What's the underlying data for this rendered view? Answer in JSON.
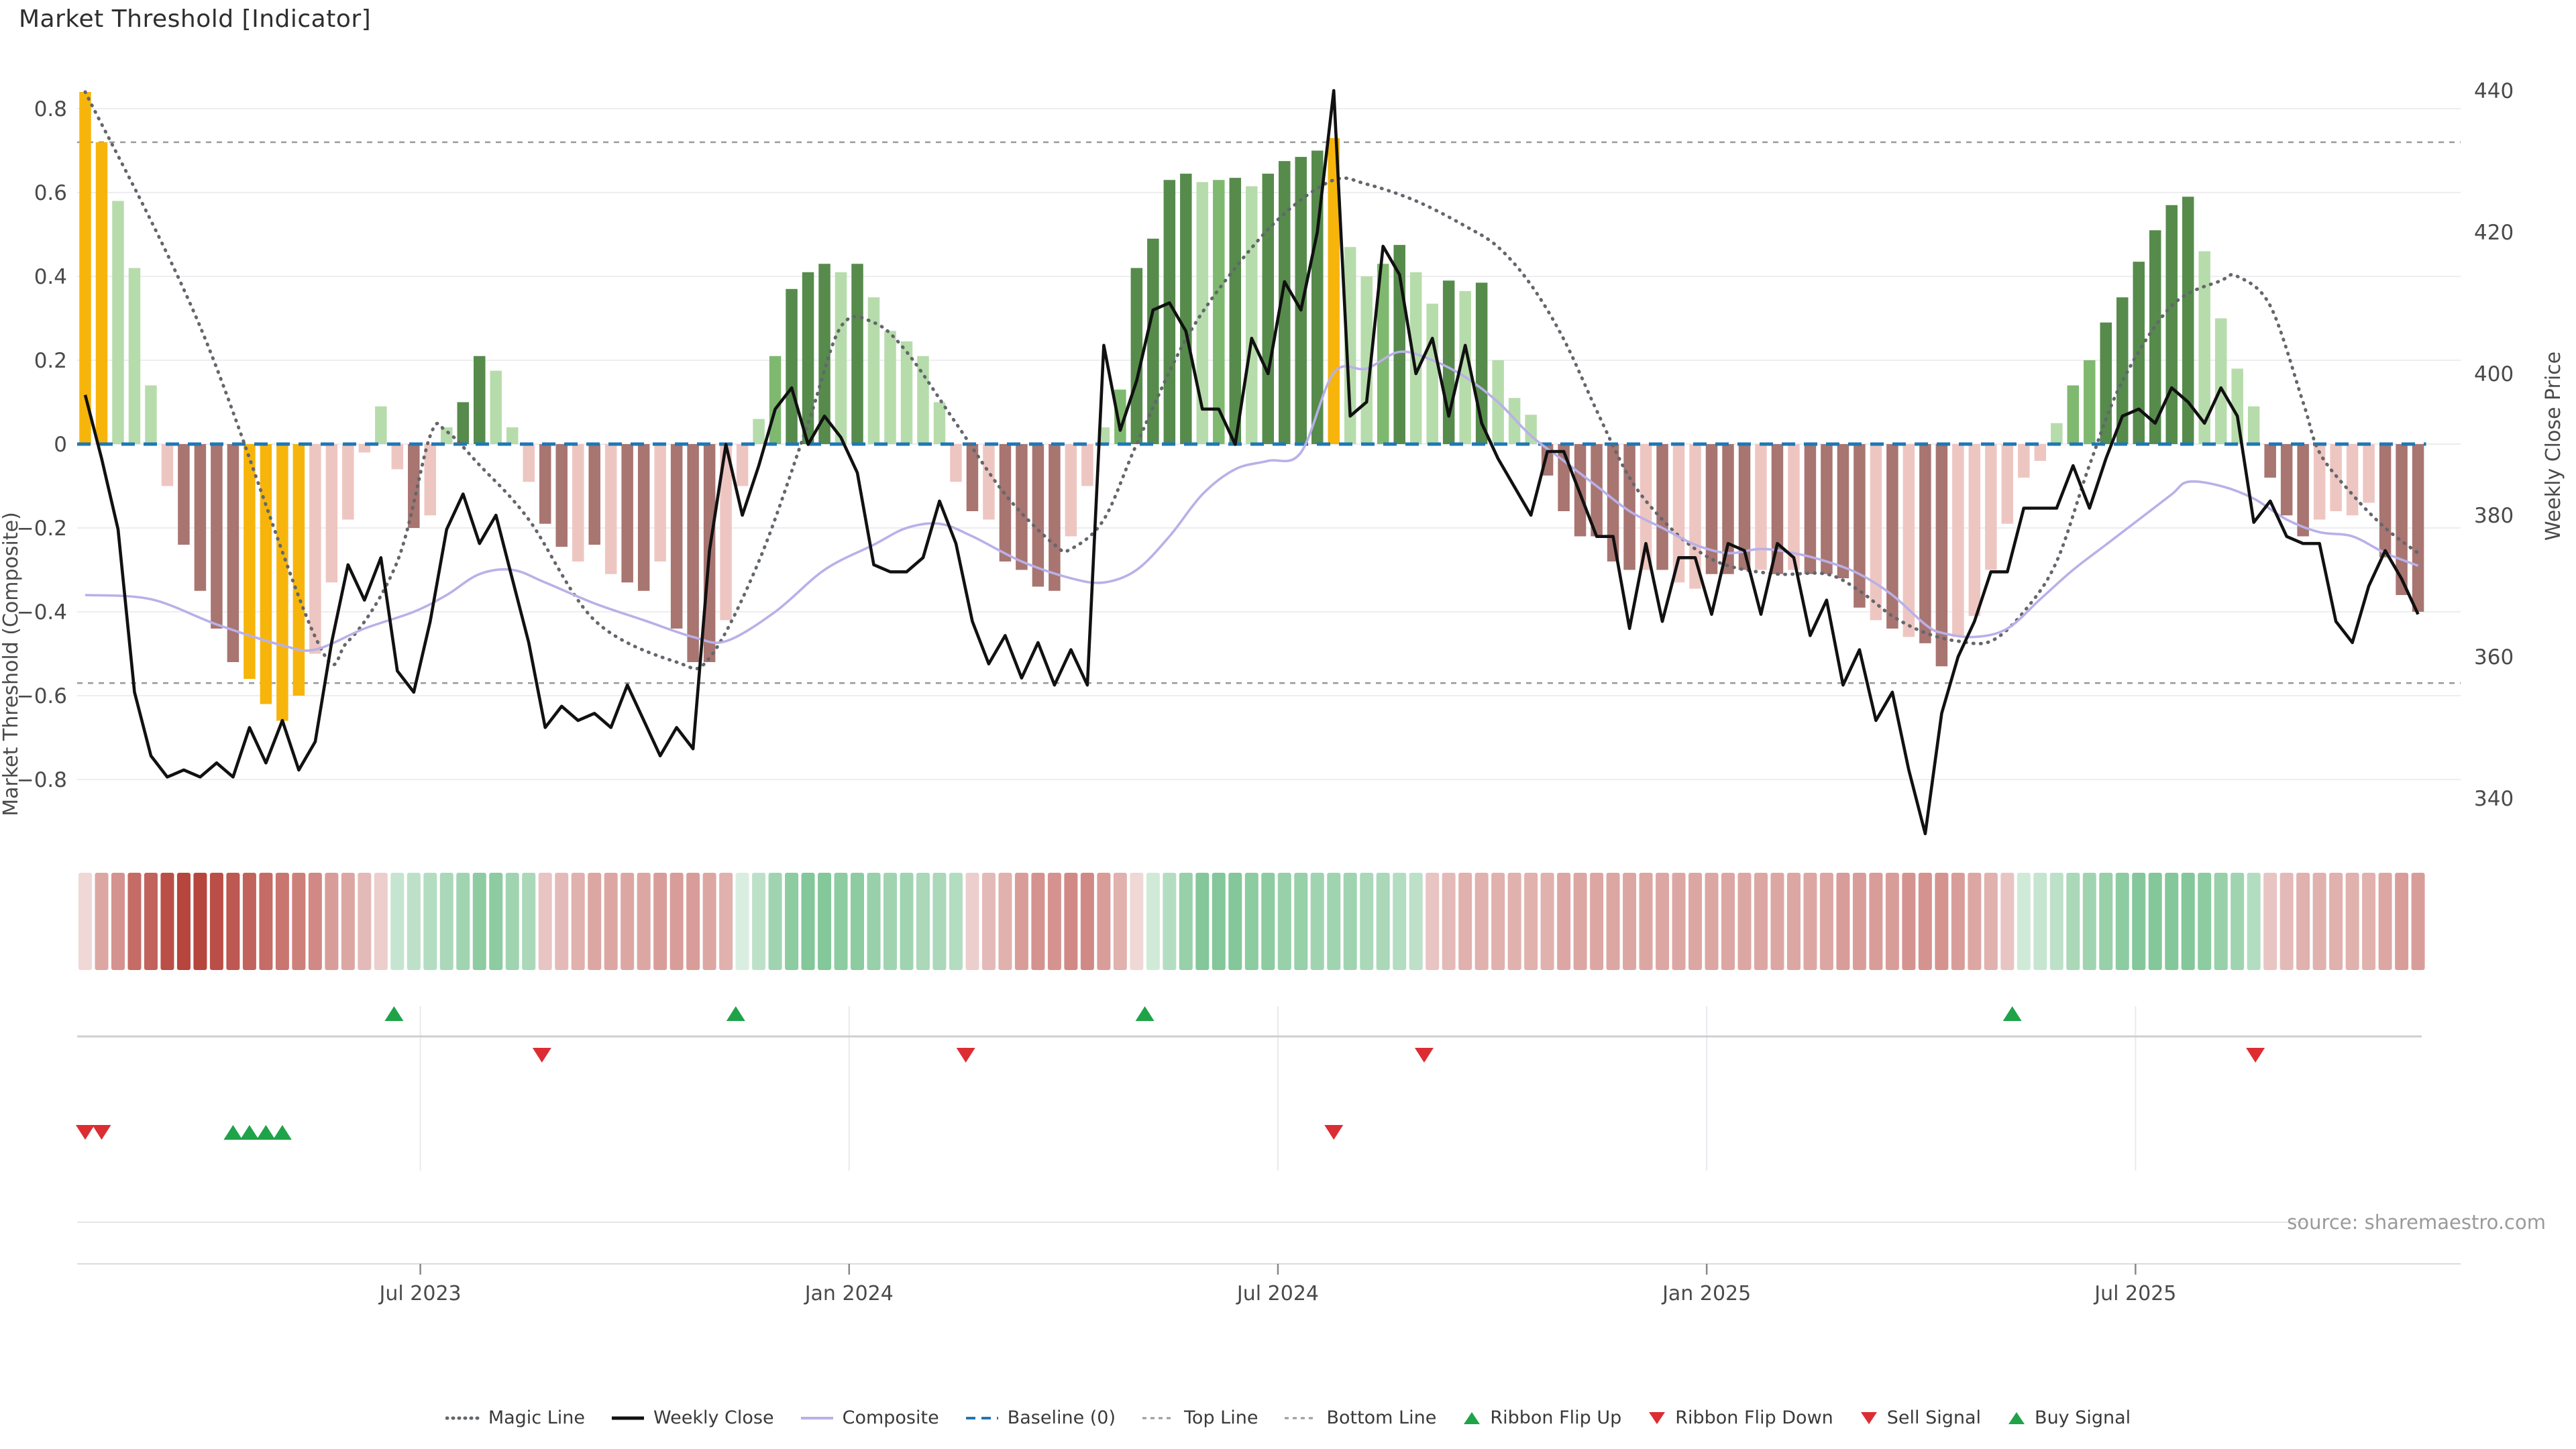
{
  "title": "Market Threshold [Indicator]",
  "source": "source: sharemaestro.com",
  "axes": {
    "left_label": "Market Threshold (Composite)",
    "right_label": "Weekly Close Price",
    "left_ticks": [
      0.8,
      0.6,
      0.4,
      0.2,
      0.0,
      -0.2,
      -0.4,
      -0.6,
      -0.8
    ],
    "right_ticks": [
      440,
      420,
      400,
      380,
      360,
      340
    ],
    "x_ticks": [
      {
        "label": "Jul 2023",
        "i": 20.4
      },
      {
        "label": "Jan 2024",
        "i": 46.5
      },
      {
        "label": "Jul 2024",
        "i": 72.6
      },
      {
        "label": "Jan 2025",
        "i": 98.7
      },
      {
        "label": "Jul 2025",
        "i": 124.8
      }
    ]
  },
  "style": {
    "bar_colors": {
      "Y": "#f7b50c",
      "d": "#568b4c",
      "m": "#7fb96f",
      "l": "#b7dcab",
      "P": "#eec6c1",
      "M": "#a87571"
    },
    "weekly_close": "#111111",
    "composite": "#b9b0e8",
    "magic": "#63676c",
    "baseline": "#1f77b4",
    "bound_lines": "#999999",
    "grid": "#ededf2",
    "ribbon_red": "#b23b33",
    "ribbon_green": "#41a963",
    "signal_green": "#1fa348",
    "signal_red": "#dc2d33",
    "tick_text": "#4a4a4a",
    "source_text": "#9a9a9a"
  },
  "chart_data": {
    "type": "bar+line",
    "x_unit": "week",
    "n": 143,
    "ylim_left": [
      -0.9,
      0.9
    ],
    "ylim_right": [
      335,
      445
    ],
    "top_line": 0.72,
    "bottom_line": -0.57,
    "baseline": 0,
    "bars": {
      "values": [
        0.84,
        0.72,
        0.58,
        0.42,
        0.14,
        -0.1,
        -0.24,
        -0.35,
        -0.44,
        -0.52,
        -0.56,
        -0.62,
        -0.66,
        -0.6,
        -0.5,
        -0.33,
        -0.18,
        -0.02,
        0.09,
        -0.06,
        -0.2,
        -0.17,
        0.04,
        0.1,
        0.21,
        0.175,
        0.04,
        -0.09,
        -0.19,
        -0.245,
        -0.28,
        -0.24,
        -0.31,
        -0.33,
        -0.35,
        -0.28,
        -0.44,
        -0.52,
        -0.52,
        -0.42,
        -0.1,
        0.06,
        0.21,
        0.37,
        0.41,
        0.43,
        0.41,
        0.43,
        0.35,
        0.27,
        0.245,
        0.21,
        0.1,
        -0.09,
        -0.16,
        -0.18,
        -0.28,
        -0.3,
        -0.34,
        -0.35,
        -0.22,
        -0.1,
        0.04,
        0.13,
        0.42,
        0.49,
        0.63,
        0.645,
        0.625,
        0.63,
        0.635,
        0.615,
        0.645,
        0.675,
        0.685,
        0.7,
        0.73,
        0.47,
        0.4,
        0.43,
        0.475,
        0.41,
        0.335,
        0.39,
        0.365,
        0.385,
        0.2,
        0.11,
        0.07,
        -0.075,
        -0.16,
        -0.22,
        -0.22,
        -0.28,
        -0.3,
        -0.3,
        -0.3,
        -0.33,
        -0.345,
        -0.31,
        -0.31,
        -0.3,
        -0.3,
        -0.31,
        -0.3,
        -0.31,
        -0.31,
        -0.32,
        -0.39,
        -0.42,
        -0.44,
        -0.46,
        -0.475,
        -0.53,
        -0.46,
        -0.41,
        -0.3,
        -0.19,
        -0.08,
        -0.04,
        0.05,
        0.14,
        0.2,
        0.29,
        0.35,
        0.435,
        0.51,
        0.57,
        0.59,
        0.46,
        0.3,
        0.18,
        0.09,
        -0.08,
        -0.17,
        -0.22,
        -0.18,
        -0.16,
        -0.17,
        -0.14,
        -0.27,
        -0.36,
        -0.4
      ],
      "classes": [
        "Y",
        "Y",
        "l",
        "l",
        "l",
        "P",
        "M",
        "M",
        "M",
        "M",
        "Y",
        "Y",
        "Y",
        "Y",
        "P",
        "P",
        "P",
        "P",
        "l",
        "P",
        "M",
        "P",
        "l",
        "d",
        "d",
        "l",
        "l",
        "P",
        "M",
        "M",
        "P",
        "M",
        "P",
        "M",
        "M",
        "P",
        "M",
        "M",
        "M",
        "P",
        "P",
        "l",
        "m",
        "d",
        "d",
        "d",
        "l",
        "d",
        "l",
        "l",
        "l",
        "l",
        "l",
        "P",
        "M",
        "P",
        "M",
        "M",
        "M",
        "M",
        "P",
        "P",
        "l",
        "m",
        "d",
        "d",
        "d",
        "d",
        "l",
        "m",
        "d",
        "l",
        "d",
        "d",
        "d",
        "d",
        "Y",
        "l",
        "l",
        "m",
        "d",
        "l",
        "l",
        "d",
        "l",
        "d",
        "l",
        "l",
        "l",
        "M",
        "M",
        "M",
        "M",
        "M",
        "M",
        "P",
        "M",
        "P",
        "P",
        "M",
        "M",
        "M",
        "P",
        "M",
        "P",
        "M",
        "M",
        "M",
        "M",
        "P",
        "M",
        "P",
        "M",
        "M",
        "P",
        "P",
        "P",
        "P",
        "P",
        "P",
        "l",
        "m",
        "m",
        "d",
        "d",
        "d",
        "d",
        "d",
        "d",
        "l",
        "l",
        "l",
        "l",
        "M",
        "M",
        "M",
        "P",
        "P",
        "P",
        "P",
        "M",
        "M",
        "M"
      ]
    },
    "weekly_close": [
      397,
      388,
      378,
      355,
      346,
      343,
      344,
      343,
      345,
      343,
      350,
      345,
      351,
      344,
      348,
      362,
      373,
      368,
      374,
      358,
      355,
      365,
      378,
      383,
      376,
      380,
      371,
      362,
      350,
      353,
      351,
      352,
      350,
      356,
      351,
      346,
      350,
      347,
      375,
      390,
      380,
      387,
      395,
      398,
      390,
      394,
      391,
      386,
      373,
      372,
      372,
      374,
      382,
      376,
      365,
      359,
      363,
      357,
      362,
      356,
      361,
      356,
      404,
      392,
      399,
      409,
      410,
      406,
      395,
      395,
      390,
      405,
      400,
      413,
      409,
      420,
      440,
      394,
      396,
      418,
      414,
      400,
      405,
      394,
      404,
      393,
      388,
      384,
      380,
      389,
      389,
      383,
      377,
      377,
      364,
      376,
      365,
      374,
      374,
      366,
      376,
      375,
      366,
      376,
      374,
      363,
      368,
      356,
      361,
      351,
      355,
      344,
      335,
      352,
      360,
      365,
      372,
      372,
      381,
      381,
      381,
      387,
      381,
      388,
      394,
      395,
      393,
      398,
      396,
      393,
      398,
      394,
      379,
      382,
      377,
      376,
      376,
      365,
      362,
      370,
      375,
      371,
      366
    ],
    "magic_line_anchors": [
      [
        0,
        0.84
      ],
      [
        7,
        0.28
      ],
      [
        14,
        -0.46
      ],
      [
        16,
        -0.47
      ],
      [
        19,
        -0.28
      ],
      [
        21,
        0.02
      ],
      [
        22,
        0.03
      ],
      [
        24,
        -0.05
      ],
      [
        27,
        -0.18
      ],
      [
        31,
        -0.42
      ],
      [
        36,
        -0.52
      ],
      [
        38,
        -0.51
      ],
      [
        41,
        -0.28
      ],
      [
        44,
        0.05
      ],
      [
        46,
        0.28
      ],
      [
        48,
        0.29
      ],
      [
        50,
        0.22
      ],
      [
        53,
        0.05
      ],
      [
        56,
        -0.12
      ],
      [
        59,
        -0.24
      ],
      [
        60,
        -0.25
      ],
      [
        62,
        -0.18
      ],
      [
        64,
        0.0
      ],
      [
        67,
        0.25
      ],
      [
        70,
        0.42
      ],
      [
        73,
        0.55
      ],
      [
        76,
        0.63
      ],
      [
        78,
        0.62
      ],
      [
        81,
        0.58
      ],
      [
        84,
        0.52
      ],
      [
        86,
        0.47
      ],
      [
        88,
        0.38
      ],
      [
        90,
        0.25
      ],
      [
        92,
        0.08
      ],
      [
        94,
        -0.08
      ],
      [
        96,
        -0.18
      ],
      [
        98,
        -0.25
      ],
      [
        100,
        -0.29
      ],
      [
        103,
        -0.31
      ],
      [
        106,
        -0.31
      ],
      [
        108,
        -0.35
      ],
      [
        110,
        -0.41
      ],
      [
        112,
        -0.45
      ],
      [
        114,
        -0.47
      ],
      [
        116,
        -0.47
      ],
      [
        118,
        -0.4
      ],
      [
        120,
        -0.28
      ],
      [
        122,
        -0.05
      ],
      [
        124,
        0.15
      ],
      [
        127,
        0.33
      ],
      [
        130,
        0.39
      ],
      [
        131,
        0.4
      ],
      [
        133,
        0.33
      ],
      [
        135,
        0.1
      ],
      [
        136,
        -0.02
      ],
      [
        138,
        -0.12
      ],
      [
        140,
        -0.2
      ],
      [
        142,
        -0.26
      ]
    ],
    "composite_anchors": [
      [
        0,
        -0.36
      ],
      [
        4,
        -0.37
      ],
      [
        8,
        -0.43
      ],
      [
        12,
        -0.48
      ],
      [
        14,
        -0.49
      ],
      [
        17,
        -0.44
      ],
      [
        20,
        -0.4
      ],
      [
        22,
        -0.36
      ],
      [
        24,
        -0.31
      ],
      [
        26,
        -0.3
      ],
      [
        28,
        -0.33
      ],
      [
        31,
        -0.38
      ],
      [
        34,
        -0.42
      ],
      [
        37,
        -0.46
      ],
      [
        39,
        -0.47
      ],
      [
        42,
        -0.4
      ],
      [
        45,
        -0.3
      ],
      [
        48,
        -0.24
      ],
      [
        50,
        -0.2
      ],
      [
        52,
        -0.19
      ],
      [
        54,
        -0.22
      ],
      [
        57,
        -0.28
      ],
      [
        60,
        -0.32
      ],
      [
        62,
        -0.33
      ],
      [
        64,
        -0.3
      ],
      [
        66,
        -0.22
      ],
      [
        68,
        -0.12
      ],
      [
        70,
        -0.06
      ],
      [
        72,
        -0.04
      ],
      [
        74,
        -0.02
      ],
      [
        76,
        0.17
      ],
      [
        78,
        0.18
      ],
      [
        80,
        0.22
      ],
      [
        82,
        0.2
      ],
      [
        84,
        0.16
      ],
      [
        86,
        0.1
      ],
      [
        88,
        0.02
      ],
      [
        90,
        -0.04
      ],
      [
        92,
        -0.1
      ],
      [
        94,
        -0.16
      ],
      [
        96,
        -0.2
      ],
      [
        98,
        -0.24
      ],
      [
        100,
        -0.26
      ],
      [
        102,
        -0.25
      ],
      [
        104,
        -0.26
      ],
      [
        106,
        -0.28
      ],
      [
        108,
        -0.31
      ],
      [
        110,
        -0.36
      ],
      [
        112,
        -0.43
      ],
      [
        113,
        -0.45
      ],
      [
        115,
        -0.46
      ],
      [
        117,
        -0.44
      ],
      [
        119,
        -0.37
      ],
      [
        121,
        -0.3
      ],
      [
        123,
        -0.24
      ],
      [
        125,
        -0.18
      ],
      [
        127,
        -0.12
      ],
      [
        128,
        -0.09
      ],
      [
        130,
        -0.1
      ],
      [
        132,
        -0.13
      ],
      [
        134,
        -0.18
      ],
      [
        136,
        -0.21
      ],
      [
        138,
        -0.22
      ],
      [
        140,
        -0.26
      ],
      [
        142,
        -0.29
      ]
    ],
    "ribbon": [
      -0.2,
      -0.45,
      -0.55,
      -0.75,
      -0.8,
      -0.9,
      -0.95,
      -0.95,
      -0.9,
      -0.85,
      -0.8,
      -0.75,
      -0.7,
      -0.65,
      -0.6,
      -0.5,
      -0.45,
      -0.35,
      -0.25,
      0.3,
      0.35,
      0.4,
      0.45,
      0.5,
      0.6,
      0.6,
      0.5,
      0.45,
      -0.3,
      -0.35,
      -0.4,
      -0.45,
      -0.45,
      -0.45,
      -0.45,
      -0.5,
      -0.5,
      -0.5,
      -0.45,
      -0.4,
      0.2,
      0.35,
      0.5,
      0.6,
      0.65,
      0.65,
      0.6,
      0.6,
      0.55,
      0.5,
      0.5,
      0.45,
      0.45,
      0.4,
      -0.25,
      -0.35,
      -0.4,
      -0.5,
      -0.55,
      -0.55,
      -0.6,
      -0.6,
      -0.5,
      -0.4,
      -0.2,
      0.25,
      0.4,
      0.55,
      0.65,
      0.65,
      0.65,
      0.6,
      0.6,
      0.55,
      0.55,
      0.5,
      0.5,
      0.5,
      0.45,
      0.45,
      0.4,
      0.35,
      -0.3,
      -0.35,
      -0.4,
      -0.4,
      -0.4,
      -0.4,
      -0.4,
      -0.4,
      -0.45,
      -0.45,
      -0.45,
      -0.45,
      -0.45,
      -0.45,
      -0.45,
      -0.45,
      -0.45,
      -0.45,
      -0.45,
      -0.45,
      -0.45,
      -0.45,
      -0.45,
      -0.45,
      -0.45,
      -0.5,
      -0.5,
      -0.5,
      -0.5,
      -0.55,
      -0.55,
      -0.55,
      -0.5,
      -0.45,
      -0.4,
      -0.3,
      0.25,
      0.3,
      0.35,
      0.45,
      0.5,
      0.55,
      0.6,
      0.65,
      0.65,
      0.65,
      0.65,
      0.6,
      0.55,
      0.5,
      0.4,
      -0.3,
      -0.35,
      -0.4,
      -0.4,
      -0.4,
      -0.4,
      -0.4,
      -0.45,
      -0.5,
      -0.5
    ],
    "signals": {
      "ribbon_flip_up": [
        18.8,
        39.6,
        64.5,
        117.3
      ],
      "ribbon_flip_down": [
        27.8,
        53.6,
        81.5,
        132.1
      ],
      "sell": [
        0,
        1,
        76
      ],
      "buy": [
        9,
        10,
        11,
        12
      ]
    }
  },
  "legend": {
    "items": [
      {
        "label": "Magic Line",
        "swatch": "dotted-dark"
      },
      {
        "label": "Weekly Close",
        "swatch": "solid-black"
      },
      {
        "label": "Composite",
        "swatch": "solid-purple"
      },
      {
        "label": "Baseline (0)",
        "swatch": "dashed-blue"
      },
      {
        "label": "Top Line",
        "swatch": "dotted-gray"
      },
      {
        "label": "Bottom Line",
        "swatch": "dotted-gray"
      },
      {
        "label": "Ribbon Flip Up",
        "swatch": "tri-up"
      },
      {
        "label": "Ribbon Flip Down",
        "swatch": "tri-down"
      },
      {
        "label": "Sell Signal",
        "swatch": "tri-down"
      },
      {
        "label": "Buy Signal",
        "swatch": "tri-up"
      }
    ]
  }
}
